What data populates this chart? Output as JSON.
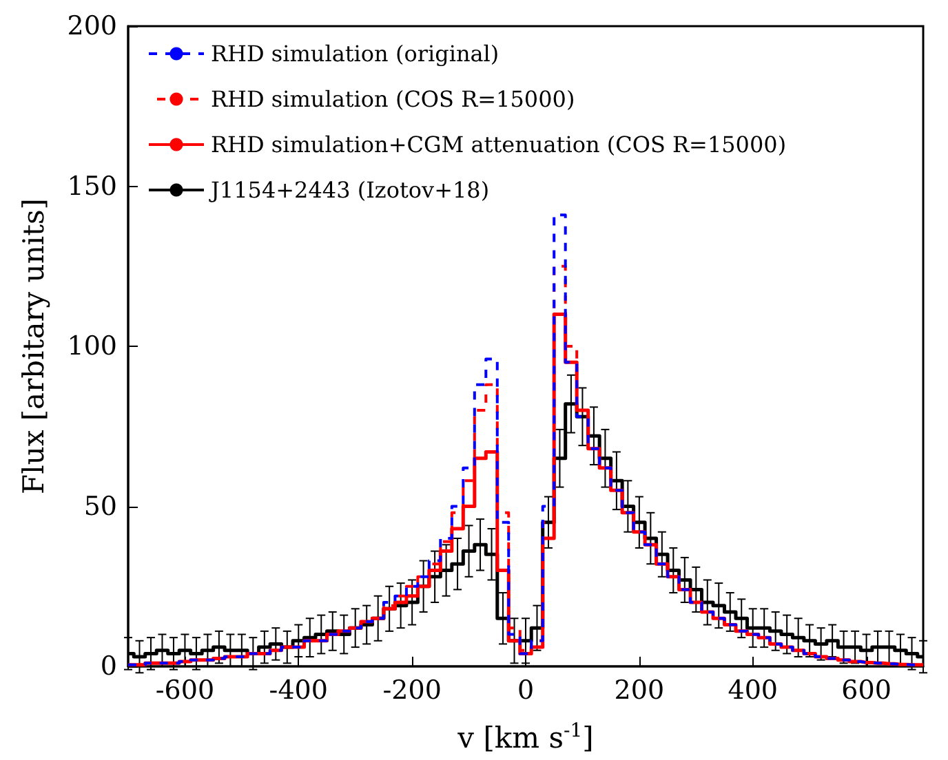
{
  "chart_data": {
    "type": "line",
    "xlabel": "v [km s$^{-1}$]",
    "ylabel": "Flux [arbitary units]",
    "xlim": [
      -700,
      700
    ],
    "xticks": [
      -600,
      -400,
      -200,
      0,
      200,
      400,
      600
    ],
    "ylim": [
      0,
      200
    ],
    "yticks": [
      0,
      50,
      100,
      150,
      200
    ],
    "grid": false,
    "legend": "top left",
    "x": [
      -700,
      -680,
      -660,
      -640,
      -620,
      -600,
      -580,
      -560,
      -540,
      -520,
      -500,
      -480,
      -460,
      -440,
      -420,
      -400,
      -380,
      -360,
      -340,
      -320,
      -300,
      -280,
      -260,
      -240,
      -220,
      -200,
      -180,
      -160,
      -140,
      -120,
      -100,
      -80,
      -60,
      -40,
      -20,
      0,
      20,
      40,
      60,
      80,
      100,
      120,
      140,
      160,
      180,
      200,
      220,
      240,
      260,
      280,
      300,
      320,
      340,
      360,
      380,
      400,
      420,
      440,
      460,
      480,
      500,
      520,
      540,
      560,
      580,
      600,
      620,
      640,
      660,
      680,
      700
    ],
    "series": [
      {
        "name": "RHD simulation (original)",
        "type": "step",
        "line_style": "dashed",
        "color": "#0000ff",
        "values": [
          0.5,
          0.5,
          1,
          1,
          1,
          1.5,
          2,
          2,
          2.5,
          3,
          3,
          4,
          4,
          5,
          6,
          6,
          8,
          8,
          10,
          11,
          12,
          14,
          15,
          20,
          22,
          25,
          28,
          33,
          40,
          50,
          62,
          88,
          96,
          45,
          10,
          4,
          8,
          50,
          141,
          95,
          78,
          68,
          62,
          55,
          48,
          42,
          38,
          32,
          28,
          24,
          20,
          17,
          15,
          13,
          11,
          10,
          9,
          7,
          6,
          5,
          4,
          3,
          2.5,
          2,
          1.5,
          1.2,
          1,
          0.8,
          0.6,
          0.5,
          0.5
        ]
      },
      {
        "name": "RHD simulation (COS R=15000)",
        "type": "step",
        "line_style": "dashed",
        "color": "#ff0000",
        "values": [
          0.5,
          0.5,
          1,
          1,
          1,
          1.5,
          2,
          2,
          2.5,
          3,
          3,
          4,
          4,
          5,
          6,
          6,
          8,
          8,
          10,
          11,
          12,
          14,
          15,
          19,
          22,
          25,
          28,
          32,
          39,
          48,
          58,
          80,
          88,
          48,
          12,
          5,
          8,
          45,
          125,
          100,
          80,
          68,
          62,
          55,
          48,
          42,
          38,
          32,
          28,
          24,
          20,
          17,
          15,
          13,
          11,
          10,
          9,
          7,
          6,
          5,
          4,
          3,
          2.5,
          2,
          1.5,
          1.2,
          1,
          0.8,
          0.6,
          0.5,
          0.5
        ]
      },
      {
        "name": "RHD simulation+CGM attenuation (COS R=15000)",
        "type": "step",
        "line_style": "solid",
        "color": "#ff0000",
        "values": [
          0.5,
          0.5,
          1,
          1,
          1,
          1.5,
          2,
          2,
          2.5,
          3,
          3,
          4,
          4,
          5,
          6,
          6,
          8,
          8,
          10,
          11,
          12,
          14,
          15,
          18,
          20,
          22,
          25,
          30,
          36,
          43,
          50,
          65,
          67,
          30,
          8,
          4,
          6,
          40,
          110,
          95,
          80,
          68,
          62,
          55,
          48,
          42,
          38,
          32,
          28,
          24,
          20,
          17,
          15,
          13,
          11,
          10,
          9,
          7,
          6,
          5,
          4,
          3,
          2.5,
          2,
          1.5,
          1.2,
          1,
          0.8,
          0.6,
          0.5,
          0.5
        ]
      },
      {
        "name": "J1154+2443 (Izotov+18)",
        "type": "step",
        "line_style": "solid",
        "color": "#000000",
        "values": [
          4,
          3,
          4,
          5,
          4,
          5,
          4,
          5,
          6,
          5,
          5,
          4,
          6,
          7,
          6,
          8,
          9,
          10,
          11,
          10,
          12,
          13,
          15,
          18,
          19,
          20,
          25,
          28,
          30,
          32,
          36,
          38,
          35,
          15,
          8,
          8,
          12,
          45,
          65,
          82,
          78,
          72,
          65,
          58,
          50,
          45,
          40,
          35,
          30,
          27,
          24,
          20,
          19,
          17,
          15,
          12,
          12,
          11,
          10,
          9,
          8,
          7,
          8,
          6,
          6,
          5,
          6,
          6,
          5,
          4,
          3
        ],
        "errors": [
          5,
          5,
          5,
          5,
          5,
          5,
          5,
          5,
          5,
          5,
          5,
          5,
          5,
          5,
          5,
          5,
          6,
          6,
          6,
          6,
          6,
          6,
          7,
          7,
          7,
          7,
          8,
          8,
          8,
          8,
          8,
          8,
          8,
          8,
          7,
          7,
          7,
          8,
          9,
          9,
          9,
          9,
          9,
          9,
          8,
          8,
          8,
          7,
          7,
          7,
          7,
          7,
          7,
          6,
          6,
          6,
          6,
          6,
          6,
          6,
          5,
          5,
          5,
          5,
          5,
          5,
          5,
          5,
          5,
          5,
          5
        ]
      }
    ]
  }
}
